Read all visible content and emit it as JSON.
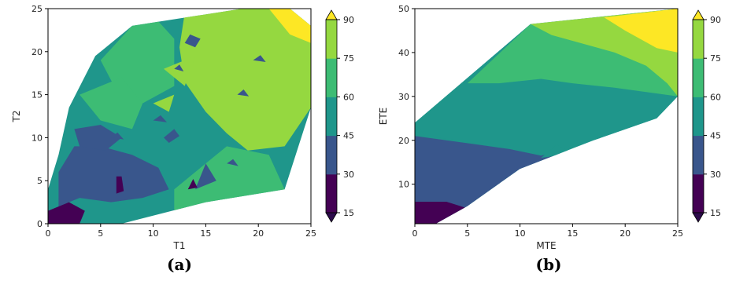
{
  "colors": {
    "levels": [
      "#440154",
      "#39568c",
      "#1f968b",
      "#3dbc74",
      "#95d840",
      "#fde725"
    ],
    "extend_low": "#2c0a4b",
    "extend_high": "#fde725"
  },
  "chart_data": [
    {
      "type": "contour",
      "panel_label": "(a)",
      "xlabel": "T1",
      "ylabel": "T2",
      "xlim": [
        0,
        25
      ],
      "ylim": [
        0,
        25
      ],
      "xticks": [
        0,
        5,
        10,
        15,
        20,
        25
      ],
      "yticks": [
        0,
        5,
        10,
        15,
        20,
        25
      ],
      "levels": [
        15,
        30,
        45,
        60,
        75,
        90
      ],
      "colorbar_ticks": [
        15,
        30,
        45,
        60,
        75,
        90
      ],
      "colorbar_extend": "both",
      "hull": [
        [
          0,
          0
        ],
        [
          0,
          4
        ],
        [
          1,
          8
        ],
        [
          2,
          13.5
        ],
        [
          4.5,
          19.5
        ],
        [
          8,
          23
        ],
        [
          18.5,
          25
        ],
        [
          23,
          25
        ],
        [
          25,
          23
        ],
        [
          25,
          13.5
        ],
        [
          22.5,
          4
        ],
        [
          15,
          2.5
        ],
        [
          7,
          0
        ]
      ],
      "regions": [
        {
          "level": 3,
          "points": [
            [
              5,
              19
            ],
            [
              8,
              23
            ],
            [
              10.5,
              23.5
            ],
            [
              12,
              21.5
            ],
            [
              12,
              16
            ],
            [
              9,
              14
            ],
            [
              6.5,
              15.5
            ]
          ]
        },
        {
          "level": 4,
          "points": [
            [
              13,
              24.5
            ],
            [
              18.5,
              25
            ],
            [
              23,
              25
            ],
            [
              25,
              23
            ],
            [
              25,
              13.5
            ],
            [
              22.5,
              9
            ],
            [
              19,
              8.5
            ],
            [
              17,
              10.5
            ],
            [
              15,
              13
            ],
            [
              13,
              16.5
            ],
            [
              12.5,
              20.5
            ]
          ]
        },
        {
          "level": 4,
          "points": [
            [
              11,
              18
            ],
            [
              14,
              19.5
            ],
            [
              13,
              16
            ]
          ]
        },
        {
          "level": 4,
          "points": [
            [
              10,
              14
            ],
            [
              12,
              15
            ],
            [
              11.5,
              13
            ]
          ]
        },
        {
          "level": 5,
          "points": [
            [
              21,
              25
            ],
            [
              23,
              25
            ],
            [
              25,
              23
            ],
            [
              25,
              21
            ],
            [
              23,
              22
            ]
          ]
        },
        {
          "level": 3,
          "points": [
            [
              12,
              1
            ],
            [
              21,
              3
            ],
            [
              22.5,
              4
            ],
            [
              21,
              8
            ],
            [
              17,
              9
            ],
            [
              14,
              6
            ],
            [
              12,
              4
            ]
          ]
        },
        {
          "level": 3,
          "points": [
            [
              3,
              15
            ],
            [
              7,
              17
            ],
            [
              9,
              14
            ],
            [
              8,
              11
            ],
            [
              5,
              12
            ]
          ]
        },
        {
          "level": 1,
          "points": [
            [
              1,
              2
            ],
            [
              3,
              3
            ],
            [
              6,
              2.5
            ],
            [
              9,
              3
            ],
            [
              11.5,
              4
            ],
            [
              10.5,
              6.5
            ],
            [
              8,
              8
            ],
            [
              5,
              9
            ],
            [
              2.5,
              9
            ],
            [
              1,
              6
            ]
          ]
        },
        {
          "level": 1,
          "points": [
            [
              2.5,
              11
            ],
            [
              5,
              11.5
            ],
            [
              7,
              10
            ],
            [
              5.5,
              8.5
            ],
            [
              3,
              9
            ]
          ]
        },
        {
          "level": 1,
          "points": [
            [
              14,
              4
            ],
            [
              15,
              7
            ],
            [
              16,
              5
            ]
          ]
        },
        {
          "level": 0,
          "points": [
            [
              0,
              0
            ],
            [
              0,
              1.5
            ],
            [
              2,
              2.5
            ],
            [
              3.5,
              1.5
            ],
            [
              3,
              0
            ]
          ]
        },
        {
          "level": 0,
          "points": [
            [
              6.5,
              3.5
            ],
            [
              6.5,
              5.5
            ],
            [
              7,
              5.5
            ],
            [
              7.2,
              3.8
            ]
          ]
        },
        {
          "level": 0,
          "points": [
            [
              13.3,
              4
            ],
            [
              13.8,
              5.2
            ],
            [
              14.2,
              4.2
            ]
          ]
        },
        {
          "level": 1,
          "points": [
            [
              13,
              21
            ],
            [
              13.5,
              22
            ],
            [
              14.5,
              21.5
            ],
            [
              14,
              20.5
            ]
          ]
        },
        {
          "level": 1,
          "points": [
            [
              11,
              10
            ],
            [
              12,
              11
            ],
            [
              12.5,
              10.2
            ],
            [
              11.5,
              9.4
            ]
          ]
        },
        {
          "level": 1,
          "points": [
            [
              19.5,
              19
            ],
            [
              20.2,
              19.6
            ],
            [
              20.7,
              18.8
            ]
          ]
        },
        {
          "level": 1,
          "points": [
            [
              10,
              12
            ],
            [
              10.7,
              12.6
            ],
            [
              11.3,
              11.8
            ]
          ]
        },
        {
          "level": 1,
          "points": [
            [
              6,
              10
            ],
            [
              6.6,
              10.6
            ],
            [
              7.2,
              9.8
            ]
          ]
        },
        {
          "level": 1,
          "points": [
            [
              18,
              15
            ],
            [
              18.6,
              15.6
            ],
            [
              19.1,
              14.8
            ]
          ]
        },
        {
          "level": 1,
          "points": [
            [
              17,
              7
            ],
            [
              17.6,
              7.5
            ],
            [
              18.1,
              6.7
            ]
          ]
        },
        {
          "level": 1,
          "points": [
            [
              12,
              18
            ],
            [
              12.5,
              18.5
            ],
            [
              12.9,
              17.7
            ]
          ]
        }
      ]
    },
    {
      "type": "contour",
      "panel_label": "(b)",
      "xlabel": "MTE",
      "ylabel": "ETE",
      "xlim": [
        0,
        25
      ],
      "ylim": [
        1,
        50
      ],
      "xticks": [
        0,
        5,
        10,
        15,
        20,
        25
      ],
      "yticks": [
        10,
        20,
        30,
        40,
        50
      ],
      "levels": [
        15,
        30,
        45,
        60,
        75,
        90
      ],
      "colorbar_ticks": [
        15,
        30,
        45,
        60,
        75,
        90
      ],
      "colorbar_extend": "both",
      "hull": [
        [
          0,
          1
        ],
        [
          0,
          24
        ],
        [
          11,
          46.5
        ],
        [
          25,
          50
        ],
        [
          25,
          30
        ],
        [
          23,
          25
        ],
        [
          17,
          20
        ],
        [
          10,
          13.5
        ],
        [
          5,
          5
        ],
        [
          2,
          1
        ]
      ],
      "regions": [
        {
          "level": 2,
          "points": [
            [
              0,
              24
            ],
            [
              11,
              46.5
            ],
            [
              16,
              42
            ],
            [
              20,
              38
            ],
            [
              23,
              33
            ],
            [
              25,
              30
            ],
            [
              23,
              25
            ],
            [
              17,
              20
            ],
            [
              12,
              16
            ],
            [
              8,
              18
            ],
            [
              4,
              20
            ],
            [
              1,
              21
            ]
          ]
        },
        {
          "level": 3,
          "points": [
            [
              5,
              33
            ],
            [
              11,
              46.5
            ],
            [
              18,
              48
            ],
            [
              20,
              43
            ],
            [
              23,
              38
            ],
            [
              25,
              34
            ],
            [
              25,
              30
            ],
            [
              22,
              31
            ],
            [
              19,
              32
            ],
            [
              15,
              33
            ],
            [
              12,
              34
            ],
            [
              8,
              33
            ]
          ]
        },
        {
          "level": 4,
          "points": [
            [
              11,
              46.5
            ],
            [
              25,
              50
            ],
            [
              25,
              30
            ],
            [
              24,
              33
            ],
            [
              22,
              37
            ],
            [
              19,
              40
            ],
            [
              16,
              42
            ],
            [
              13,
              44
            ]
          ]
        },
        {
          "level": 5,
          "points": [
            [
              18,
              48
            ],
            [
              25,
              50
            ],
            [
              25,
              40
            ],
            [
              23,
              41
            ],
            [
              20,
              45
            ]
          ]
        },
        {
          "level": 1,
          "points": [
            [
              0,
              1
            ],
            [
              0,
              21
            ],
            [
              3,
              20
            ],
            [
              6,
              19
            ],
            [
              9,
              18
            ],
            [
              12,
              16.5
            ],
            [
              14,
              17.5
            ],
            [
              12,
              13
            ],
            [
              10,
              13.5
            ],
            [
              5,
              5
            ],
            [
              2,
              1
            ]
          ]
        },
        {
          "level": 0,
          "points": [
            [
              0,
              1
            ],
            [
              0,
              6
            ],
            [
              3,
              6
            ],
            [
              5,
              4.5
            ],
            [
              2,
              1
            ]
          ]
        },
        {
          "level": 2,
          "points": [
            [
              12,
              16
            ],
            [
              13.5,
              19
            ],
            [
              15,
              17
            ]
          ]
        },
        {
          "level": 3,
          "points": [
            [
              21,
              31.5
            ],
            [
              22,
              33.5
            ],
            [
              23,
              31
            ]
          ]
        }
      ]
    }
  ]
}
